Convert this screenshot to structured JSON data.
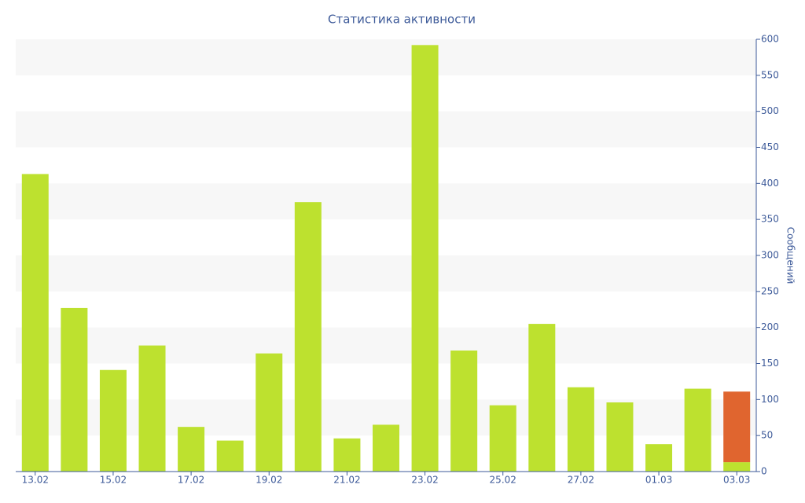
{
  "chart_data": {
    "type": "bar",
    "stacked": true,
    "title": "Статистика активности",
    "y_label": "Сообщений",
    "categories": [
      "13.02",
      null,
      "15.02",
      null,
      "17.02",
      null,
      "19.02",
      null,
      "21.02",
      null,
      "23.02",
      null,
      "25.02",
      null,
      "27.02",
      null,
      "01.03",
      null,
      "03.03"
    ],
    "series": [
      {
        "color": "#bde12f",
        "values": [
          413,
          227,
          141,
          175,
          62,
          43,
          164,
          374,
          46,
          65,
          592,
          168,
          92,
          205,
          117,
          96,
          38,
          115,
          13
        ]
      },
      {
        "color": "#e0652f",
        "values": [
          null,
          null,
          null,
          null,
          null,
          null,
          null,
          null,
          null,
          null,
          null,
          null,
          null,
          null,
          null,
          null,
          null,
          null,
          98
        ]
      }
    ],
    "ylim": [
      0,
      600
    ],
    "yticks": [
      0,
      50,
      100,
      150,
      200,
      250,
      300,
      350,
      400,
      450,
      500,
      550,
      600
    ],
    "grid": true
  }
}
